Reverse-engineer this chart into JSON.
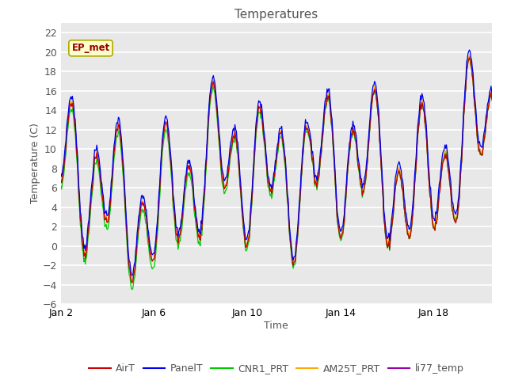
{
  "title": "Temperatures",
  "xlabel": "Time",
  "ylabel": "Temperature (C)",
  "ylim": [
    -6,
    23
  ],
  "yticks": [
    -6,
    -4,
    -2,
    0,
    2,
    4,
    6,
    8,
    10,
    12,
    14,
    16,
    18,
    20,
    22
  ],
  "fig_bg_color": "#ffffff",
  "plot_bg_color": "#e8e8e8",
  "series_colors": {
    "AirT": "#cc0000",
    "PanelT": "#0000ee",
    "CNR1_PRT": "#00cc00",
    "AM25T_PRT": "#ffaa00",
    "li77_temp": "#9900aa"
  },
  "legend_entries": [
    "AirT",
    "PanelT",
    "CNR1_PRT",
    "AM25T_PRT",
    "li77_temp"
  ],
  "annotation_text": "EP_met",
  "x_tick_labels": [
    "Jan 2",
    "Jan 6",
    "Jan 10",
    "Jan 14",
    "Jan 18"
  ],
  "x_tick_positions": [
    1,
    5,
    9,
    13,
    17
  ],
  "num_points": 600,
  "start_day": 1,
  "end_day": 19.5,
  "line_width": 0.9,
  "grid_color": "#ffffff",
  "grid_lw": 1.2
}
